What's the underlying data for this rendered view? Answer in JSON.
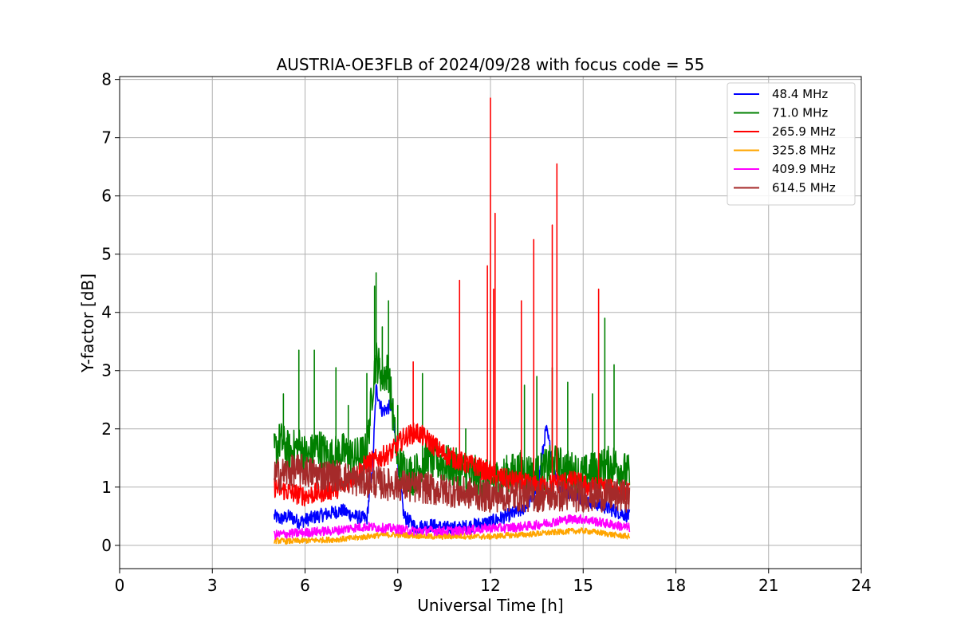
{
  "chart_data": {
    "type": "line",
    "title": "AUSTRIA-OE3FLB of 2024/09/28 with focus code = 55",
    "xlabel": "Universal Time [h]",
    "ylabel": "Y-factor [dB]",
    "xlim": [
      0,
      24
    ],
    "ylim": [
      -0.4,
      8.05
    ],
    "xticks": [
      0,
      3,
      6,
      9,
      12,
      15,
      18,
      21,
      24
    ],
    "yticks": [
      0,
      1,
      2,
      3,
      4,
      5,
      6,
      7,
      8
    ],
    "grid": true,
    "legend_position": "top-right",
    "series": [
      {
        "name": "48.4 MHz",
        "color": "#0000ff",
        "x": [
          5.0,
          5.2,
          5.5,
          5.8,
          6.1,
          6.4,
          6.8,
          7.2,
          7.6,
          8.0,
          8.2,
          8.3,
          8.5,
          8.8,
          9.2,
          9.6,
          10.0,
          10.5,
          11.0,
          11.5,
          12.0,
          12.5,
          13.0,
          13.5,
          13.8,
          14.2,
          14.6,
          15.0,
          15.5,
          16.0,
          16.5
        ],
        "y": [
          0.5,
          0.45,
          0.5,
          0.4,
          0.45,
          0.5,
          0.55,
          0.6,
          0.5,
          0.45,
          1.5,
          2.7,
          2.3,
          2.4,
          0.5,
          0.3,
          0.35,
          0.3,
          0.3,
          0.35,
          0.4,
          0.5,
          0.6,
          0.9,
          2.0,
          1.0,
          0.9,
          0.8,
          0.7,
          0.6,
          0.5
        ]
      },
      {
        "name": "71.0 MHz",
        "color": "#008000",
        "x": [
          5.0,
          5.2,
          5.5,
          5.8,
          6.1,
          6.4,
          6.8,
          7.2,
          7.6,
          8.0,
          8.2,
          8.3,
          8.5,
          8.7,
          9.0,
          9.5,
          10.0,
          10.5,
          11.0,
          11.5,
          12.0,
          12.5,
          13.0,
          13.5,
          14.0,
          14.5,
          15.0,
          15.5,
          16.0,
          16.5
        ],
        "y": [
          1.6,
          1.8,
          1.6,
          1.7,
          1.5,
          1.7,
          1.5,
          1.6,
          1.5,
          1.6,
          2.8,
          3.2,
          2.9,
          3.0,
          1.4,
          1.2,
          1.5,
          1.4,
          1.3,
          1.2,
          1.1,
          1.2,
          1.3,
          1.2,
          1.4,
          1.3,
          1.2,
          1.3,
          1.4,
          1.2
        ],
        "peaks": [
          [
            5.3,
            2.6
          ],
          [
            5.8,
            3.35
          ],
          [
            6.3,
            3.35
          ],
          [
            7.0,
            3.05
          ],
          [
            7.4,
            2.4
          ],
          [
            8.0,
            2.95
          ],
          [
            8.25,
            4.45
          ],
          [
            8.3,
            4.68
          ],
          [
            8.5,
            3.75
          ],
          [
            8.7,
            4.2
          ],
          [
            9.0,
            2.4
          ],
          [
            9.8,
            2.95
          ],
          [
            11.2,
            2.0
          ],
          [
            13.1,
            2.75
          ],
          [
            13.5,
            2.9
          ],
          [
            14.0,
            3.05
          ],
          [
            14.5,
            2.8
          ],
          [
            15.3,
            2.6
          ],
          [
            15.7,
            3.9
          ],
          [
            16.0,
            3.1
          ]
        ]
      },
      {
        "name": "265.9 MHz",
        "color": "#ff0000",
        "x": [
          5.0,
          5.3,
          5.6,
          6.0,
          6.4,
          6.8,
          7.2,
          7.6,
          8.0,
          8.4,
          8.8,
          9.2,
          9.6,
          10.0,
          10.4,
          10.8,
          11.2,
          11.6,
          12.0,
          12.4,
          12.8,
          13.2,
          13.6,
          14.0,
          14.4,
          14.8,
          15.2,
          15.6,
          16.0,
          16.5
        ],
        "y": [
          1.0,
          0.95,
          0.9,
          0.85,
          0.9,
          0.95,
          1.0,
          1.2,
          1.4,
          1.5,
          1.6,
          1.85,
          1.95,
          1.8,
          1.6,
          1.5,
          1.4,
          1.35,
          1.2,
          1.15,
          1.1,
          1.05,
          1.0,
          1.05,
          1.1,
          1.1,
          1.0,
          1.0,
          0.95,
          0.9
        ],
        "peaks": [
          [
            9.5,
            3.15
          ],
          [
            11.0,
            4.55
          ],
          [
            11.9,
            4.8
          ],
          [
            12.0,
            7.68
          ],
          [
            12.1,
            4.4
          ],
          [
            12.15,
            5.7
          ],
          [
            13.0,
            4.2
          ],
          [
            13.4,
            5.25
          ],
          [
            14.0,
            5.5
          ],
          [
            14.15,
            6.55
          ],
          [
            15.5,
            4.4
          ]
        ]
      },
      {
        "name": "325.8 MHz",
        "color": "#ffa500",
        "x": [
          5.0,
          5.5,
          6.0,
          6.5,
          7.0,
          7.5,
          8.0,
          8.5,
          9.0,
          9.5,
          10.0,
          10.5,
          11.0,
          11.5,
          12.0,
          12.5,
          13.0,
          13.5,
          14.0,
          14.5,
          15.0,
          15.5,
          16.0,
          16.5
        ],
        "y": [
          0.08,
          0.07,
          0.08,
          0.09,
          0.1,
          0.12,
          0.15,
          0.18,
          0.18,
          0.17,
          0.15,
          0.15,
          0.16,
          0.15,
          0.15,
          0.17,
          0.18,
          0.2,
          0.22,
          0.24,
          0.25,
          0.22,
          0.18,
          0.15
        ]
      },
      {
        "name": "409.9 MHz",
        "color": "#ff00ff",
        "x": [
          5.0,
          5.5,
          6.0,
          6.5,
          7.0,
          7.5,
          8.0,
          8.5,
          9.0,
          9.5,
          10.0,
          10.5,
          11.0,
          11.5,
          12.0,
          12.5,
          13.0,
          13.5,
          14.0,
          14.5,
          15.0,
          15.5,
          16.0,
          16.5
        ],
        "y": [
          0.18,
          0.2,
          0.22,
          0.24,
          0.25,
          0.3,
          0.32,
          0.3,
          0.28,
          0.25,
          0.25,
          0.25,
          0.25,
          0.27,
          0.3,
          0.3,
          0.32,
          0.35,
          0.4,
          0.45,
          0.45,
          0.4,
          0.35,
          0.3
        ]
      },
      {
        "name": "614.5 MHz",
        "color": "#a52a2a",
        "x": [
          5.0,
          5.4,
          5.8,
          6.2,
          6.6,
          7.0,
          7.4,
          7.8,
          8.2,
          8.6,
          9.0,
          9.4,
          9.8,
          10.2,
          10.6,
          11.0,
          11.4,
          11.8,
          12.2,
          12.6,
          13.0,
          13.4,
          13.8,
          14.2,
          14.6,
          15.0,
          15.4,
          15.8,
          16.2,
          16.5
        ],
        "y": [
          1.2,
          1.25,
          1.3,
          1.25,
          1.2,
          1.2,
          1.15,
          1.1,
          1.1,
          1.05,
          1.05,
          1.0,
          1.0,
          0.95,
          0.95,
          0.9,
          0.9,
          0.85,
          0.85,
          0.85,
          0.85,
          0.85,
          0.85,
          0.85,
          0.85,
          0.85,
          0.85,
          0.85,
          0.85,
          0.85
        ]
      }
    ]
  }
}
